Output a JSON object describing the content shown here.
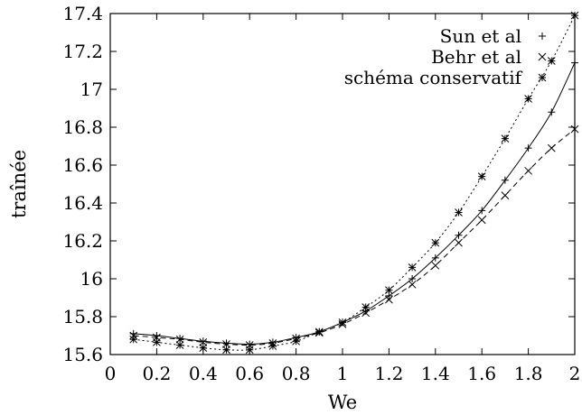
{
  "chart_data": {
    "type": "line",
    "xlabel": "We",
    "ylabel": "traînée",
    "xlim": [
      0,
      2
    ],
    "ylim": [
      15.6,
      17.4
    ],
    "xticks": [
      0,
      0.2,
      0.4,
      0.6,
      0.8,
      1,
      1.2,
      1.4,
      1.6,
      1.8,
      2
    ],
    "yticks": [
      15.6,
      15.8,
      16,
      16.2,
      16.4,
      16.6,
      16.8,
      17,
      17.2,
      17.4
    ],
    "legend_position": "top-right",
    "grid": false,
    "series": [
      {
        "name": "Sun et al",
        "marker": "plus",
        "line": "solid",
        "x": [
          0.1,
          0.2,
          0.3,
          0.4,
          0.5,
          0.6,
          0.7,
          0.8,
          0.9,
          1.0,
          1.1,
          1.2,
          1.3,
          1.4,
          1.5,
          1.6,
          1.7,
          1.8,
          1.9,
          2.0
        ],
        "y": [
          15.71,
          15.7,
          15.685,
          15.67,
          15.66,
          15.655,
          15.665,
          15.69,
          15.72,
          15.77,
          15.83,
          15.91,
          16.0,
          16.11,
          16.23,
          16.36,
          16.52,
          16.69,
          16.88,
          17.14
        ]
      },
      {
        "name": "Behr et al",
        "marker": "cross",
        "line": "dashed",
        "x": [
          0.1,
          0.2,
          0.3,
          0.4,
          0.5,
          0.6,
          0.7,
          0.8,
          0.9,
          1.0,
          1.1,
          1.2,
          1.3,
          1.4,
          1.5,
          1.6,
          1.7,
          1.8,
          1.9,
          2.0
        ],
        "y": [
          15.7,
          15.69,
          15.68,
          15.665,
          15.655,
          15.65,
          15.66,
          15.685,
          15.715,
          15.76,
          15.82,
          15.89,
          15.97,
          16.07,
          16.19,
          16.31,
          16.44,
          16.57,
          16.69,
          16.79
        ]
      },
      {
        "name": "schéma conservatif",
        "marker": "star",
        "line": "dotted",
        "x": [
          0.1,
          0.2,
          0.3,
          0.4,
          0.5,
          0.6,
          0.7,
          0.8,
          0.9,
          1.0,
          1.1,
          1.2,
          1.3,
          1.4,
          1.5,
          1.6,
          1.7,
          1.8,
          1.9,
          2.0
        ],
        "y": [
          15.68,
          15.665,
          15.65,
          15.635,
          15.625,
          15.625,
          15.645,
          15.67,
          15.72,
          15.77,
          15.85,
          15.94,
          16.06,
          16.19,
          16.35,
          16.54,
          16.74,
          16.95,
          17.15,
          17.39
        ]
      }
    ]
  }
}
